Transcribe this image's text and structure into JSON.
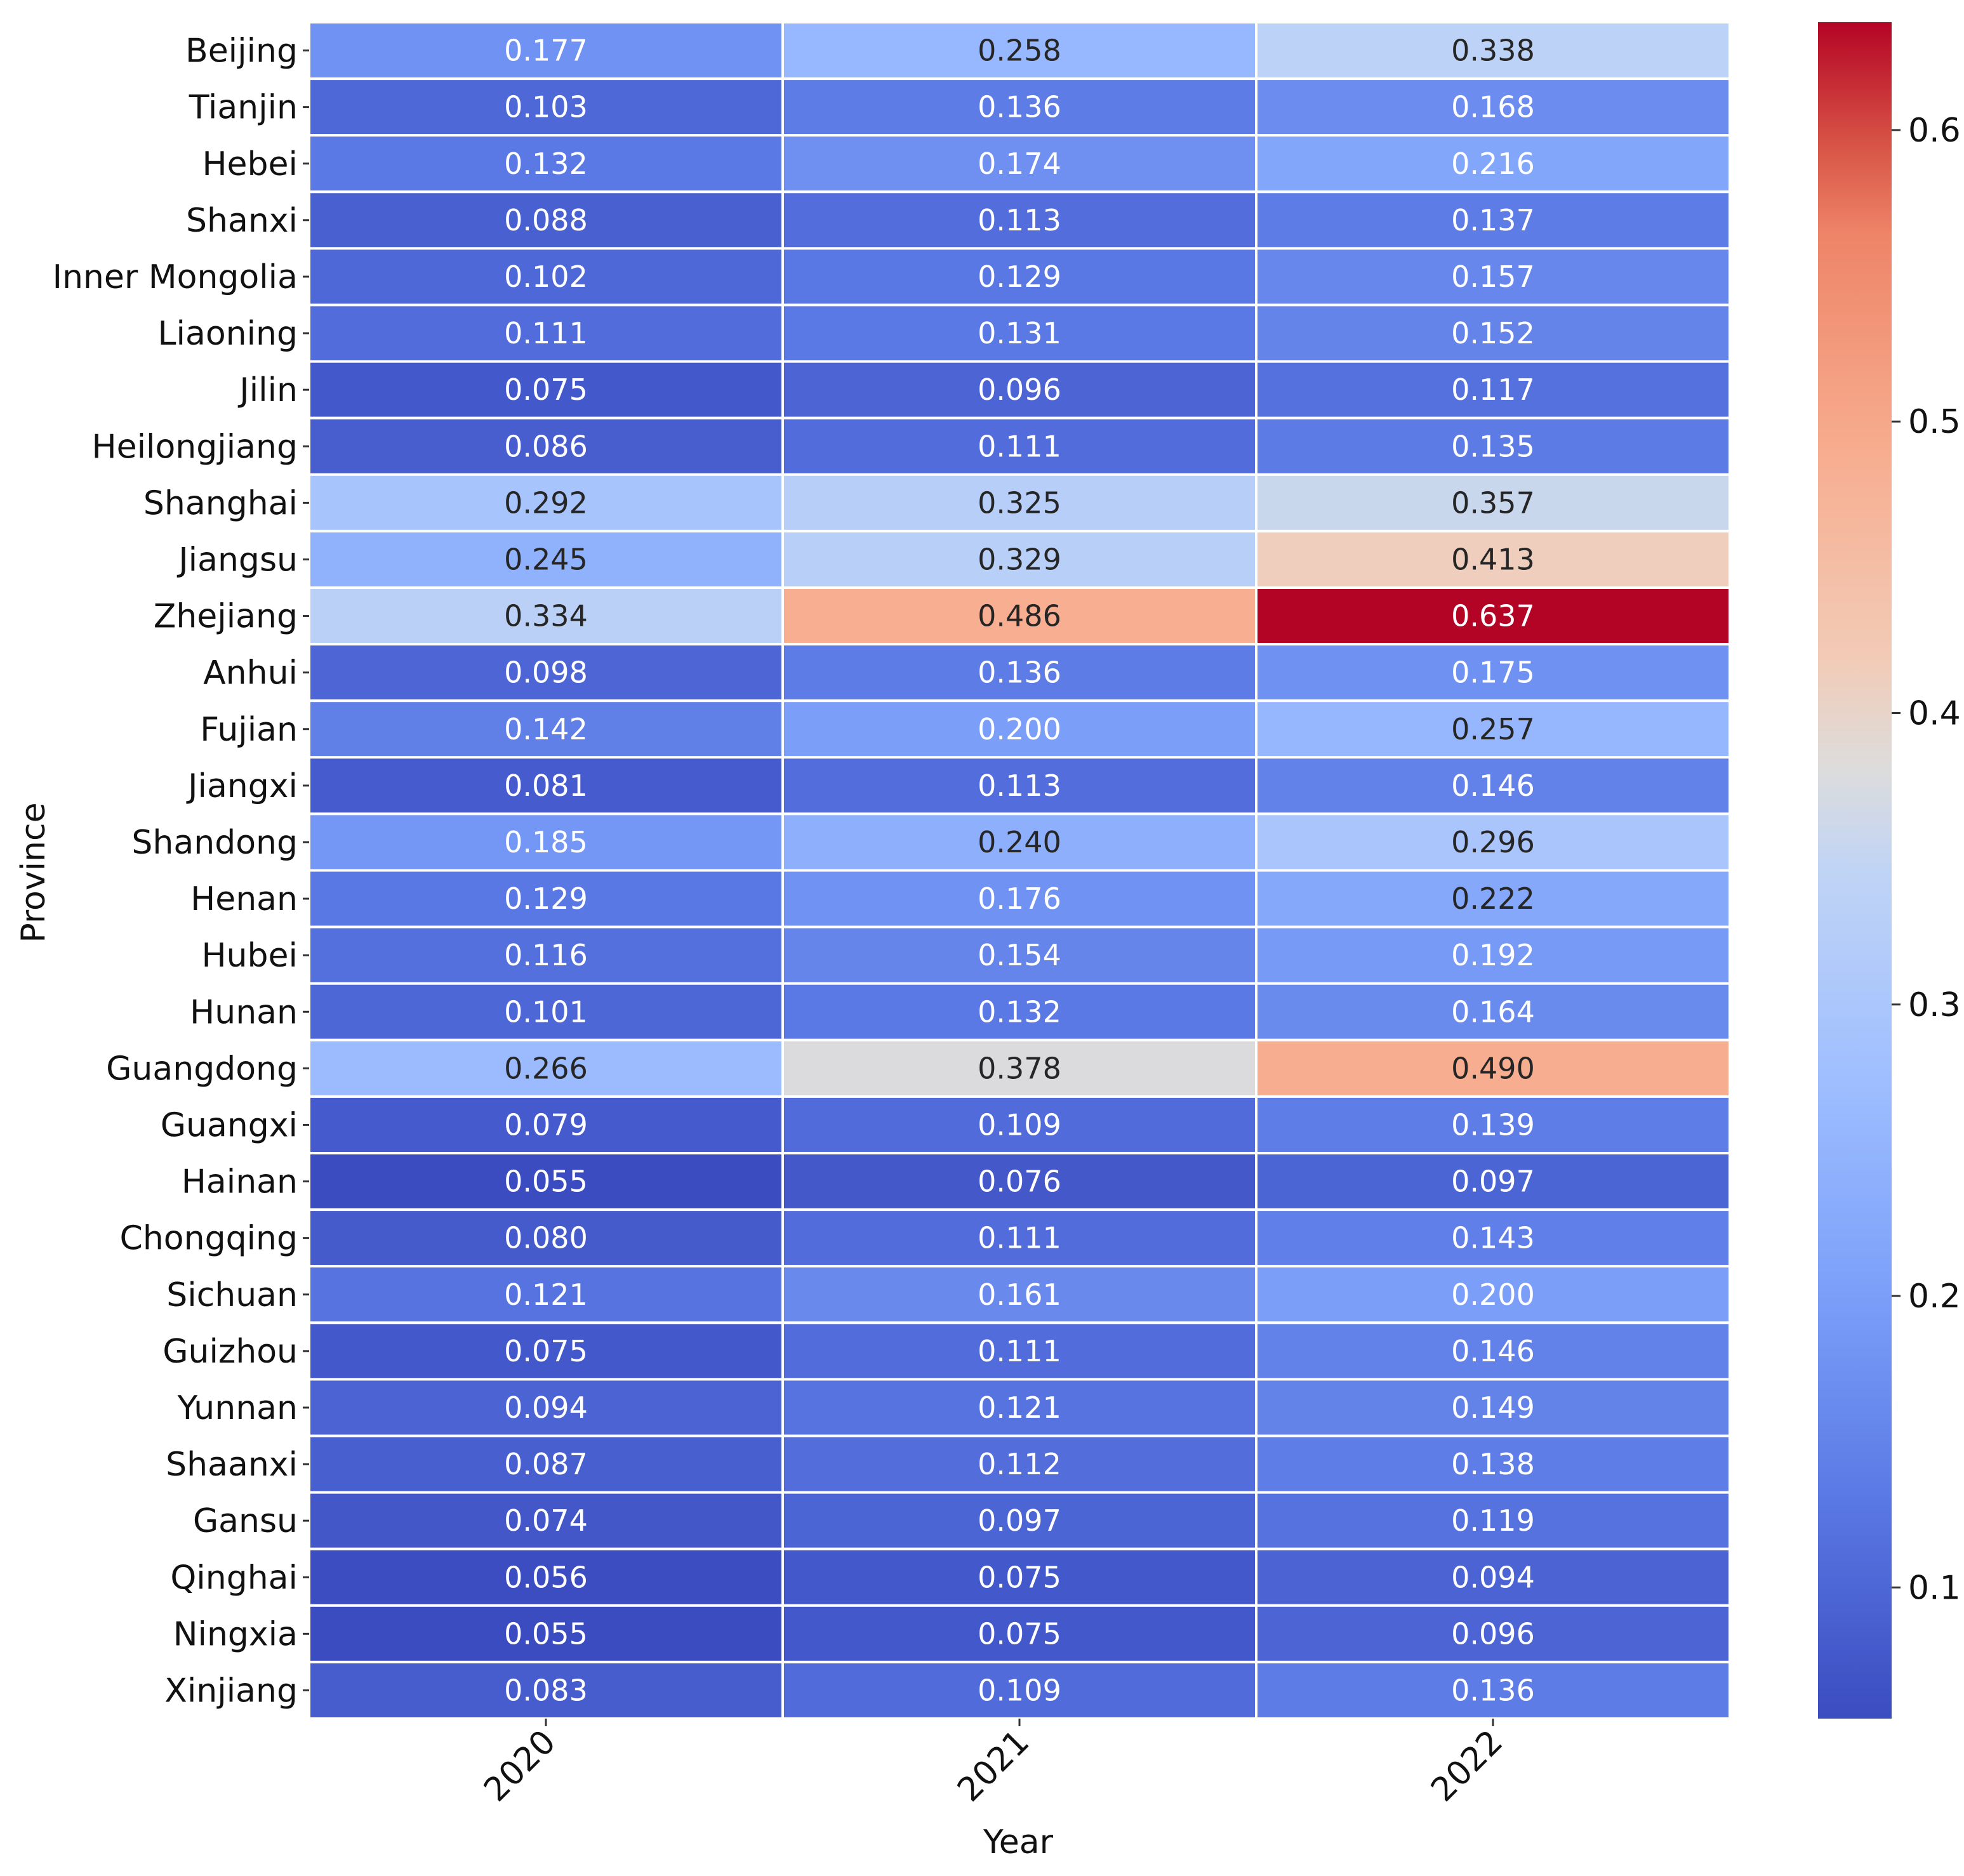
{
  "chart_data": {
    "type": "heatmap",
    "title": "",
    "xlabel": "Year",
    "ylabel": "Province",
    "x": [
      "2020",
      "2021",
      "2022"
    ],
    "y": [
      "Beijing",
      "Tianjin",
      "Hebei",
      "Shanxi",
      "Inner Mongolia",
      "Liaoning",
      "Jilin",
      "Heilongjiang",
      "Shanghai",
      "Jiangsu",
      "Zhejiang",
      "Anhui",
      "Fujian",
      "Jiangxi",
      "Shandong",
      "Henan",
      "Hubei",
      "Hunan",
      "Guangdong",
      "Guangxi",
      "Hainan",
      "Chongqing",
      "Sichuan",
      "Guizhou",
      "Yunnan",
      "Shaanxi",
      "Gansu",
      "Qinghai",
      "Ningxia",
      "Xinjiang"
    ],
    "values": [
      [
        "0.177",
        "0.258",
        "0.338"
      ],
      [
        "0.103",
        "0.136",
        "0.168"
      ],
      [
        "0.132",
        "0.174",
        "0.216"
      ],
      [
        "0.088",
        "0.113",
        "0.137"
      ],
      [
        "0.102",
        "0.129",
        "0.157"
      ],
      [
        "0.111",
        "0.131",
        "0.152"
      ],
      [
        "0.075",
        "0.096",
        "0.117"
      ],
      [
        "0.086",
        "0.111",
        "0.135"
      ],
      [
        "0.292",
        "0.325",
        "0.357"
      ],
      [
        "0.245",
        "0.329",
        "0.413"
      ],
      [
        "0.334",
        "0.486",
        "0.637"
      ],
      [
        "0.098",
        "0.136",
        "0.175"
      ],
      [
        "0.142",
        "0.200",
        "0.257"
      ],
      [
        "0.081",
        "0.113",
        "0.146"
      ],
      [
        "0.185",
        "0.240",
        "0.296"
      ],
      [
        "0.129",
        "0.176",
        "0.222"
      ],
      [
        "0.116",
        "0.154",
        "0.192"
      ],
      [
        "0.101",
        "0.132",
        "0.164"
      ],
      [
        "0.266",
        "0.378",
        "0.490"
      ],
      [
        "0.079",
        "0.109",
        "0.139"
      ],
      [
        "0.055",
        "0.076",
        "0.097"
      ],
      [
        "0.080",
        "0.111",
        "0.143"
      ],
      [
        "0.121",
        "0.161",
        "0.200"
      ],
      [
        "0.075",
        "0.111",
        "0.146"
      ],
      [
        "0.094",
        "0.121",
        "0.149"
      ],
      [
        "0.087",
        "0.112",
        "0.138"
      ],
      [
        "0.074",
        "0.097",
        "0.119"
      ],
      [
        "0.056",
        "0.075",
        "0.094"
      ],
      [
        "0.055",
        "0.075",
        "0.096"
      ],
      [
        "0.083",
        "0.109",
        "0.136"
      ]
    ],
    "colorbar": {
      "colormap": "coolwarm",
      "vmin": 0.055,
      "vmax": 0.637,
      "ticks": [
        "0.1",
        "0.2",
        "0.3",
        "0.4",
        "0.5",
        "0.6"
      ]
    },
    "grid": false
  }
}
